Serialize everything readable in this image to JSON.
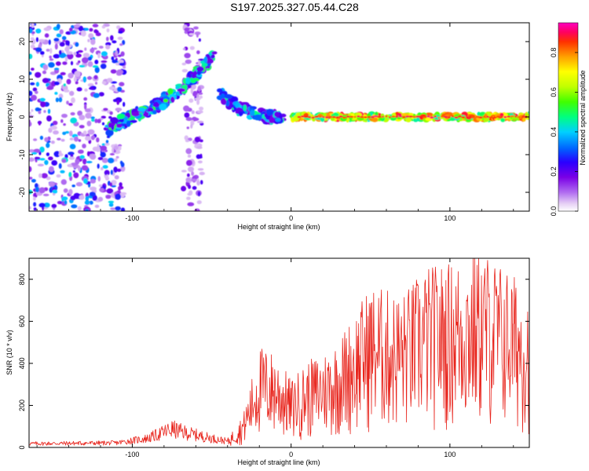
{
  "figure_title": "S197.2025.327.05.44.C28",
  "chart_data": [
    {
      "type": "heatmap",
      "xlabel": "Height of straight line (km)",
      "ylabel": "Frequency (Hz)",
      "xlim": [
        -165,
        150
      ],
      "ylim": [
        -25,
        25
      ],
      "xticks": [
        -100,
        0,
        100
      ],
      "yticks": [
        -20,
        -10,
        0,
        10,
        20
      ],
      "colorbar": {
        "label": "Normalized spectral amplitude",
        "range": [
          0,
          0.95
        ],
        "ticks": [
          "0.0",
          "0.2",
          "0.4",
          "0.6",
          "0.8"
        ],
        "colormap": [
          "#ffffff",
          "#e6d0f5",
          "#b06cf0",
          "#7a00e6",
          "#2a00ff",
          "#0060ff",
          "#00d0ff",
          "#00ff80",
          "#40ff00",
          "#c0ff00",
          "#ffff00",
          "#ffa000",
          "#ff3000",
          "#ff0060",
          "#ff00c0"
        ]
      },
      "features": [
        {
          "name": "noise-scatter",
          "x_range": [
            -165,
            -105
          ],
          "y_range": [
            -25,
            25
          ],
          "amplitude": [
            0.05,
            0.45
          ]
        },
        {
          "name": "noise-strip",
          "x_range": [
            -68,
            -56
          ],
          "y_range": [
            -25,
            25
          ],
          "amplitude": [
            0.05,
            0.25
          ]
        },
        {
          "name": "rising-branch",
          "points": [
            [
              -115,
              -3
            ],
            [
              -100,
              0
            ],
            [
              -85,
              3
            ],
            [
              -70,
              7
            ],
            [
              -58,
              12
            ],
            [
              -48,
              17
            ]
          ],
          "amplitude": 0.4
        },
        {
          "name": "converging-branch",
          "points": [
            [
              -45,
              6
            ],
            [
              -35,
              3
            ],
            [
              -25,
              1
            ],
            [
              -15,
              0
            ],
            [
              -5,
              0
            ]
          ],
          "amplitude": 0.35
        },
        {
          "name": "steady-line",
          "points": [
            [
              0,
              0
            ],
            [
              150,
              0
            ]
          ],
          "amplitude": 0.9
        }
      ]
    },
    {
      "type": "line",
      "xlabel": "Height of straight line (km)",
      "ylabel": "SNR (10 * v/v)",
      "xlim": [
        -165,
        150
      ],
      "ylim": [
        0,
        900
      ],
      "xticks": [
        -100,
        0,
        100
      ],
      "yticks": [
        0,
        200,
        400,
        600,
        800
      ],
      "color": "#e8241c",
      "envelope": [
        {
          "x": -165,
          "y": 25
        },
        {
          "x": -110,
          "y": 30
        },
        {
          "x": -90,
          "y": 60
        },
        {
          "x": -75,
          "y": 120
        },
        {
          "x": -68,
          "y": 100
        },
        {
          "x": -50,
          "y": 60
        },
        {
          "x": -40,
          "y": 40
        },
        {
          "x": -30,
          "y": 150
        },
        {
          "x": -20,
          "y": 450
        },
        {
          "x": -10,
          "y": 420
        },
        {
          "x": 0,
          "y": 300
        },
        {
          "x": 10,
          "y": 380
        },
        {
          "x": 20,
          "y": 420
        },
        {
          "x": 30,
          "y": 480
        },
        {
          "x": 40,
          "y": 600
        },
        {
          "x": 50,
          "y": 720
        },
        {
          "x": 60,
          "y": 700
        },
        {
          "x": 70,
          "y": 680
        },
        {
          "x": 85,
          "y": 800
        },
        {
          "x": 100,
          "y": 820
        },
        {
          "x": 120,
          "y": 880
        },
        {
          "x": 135,
          "y": 800
        },
        {
          "x": 150,
          "y": 700
        }
      ]
    }
  ]
}
